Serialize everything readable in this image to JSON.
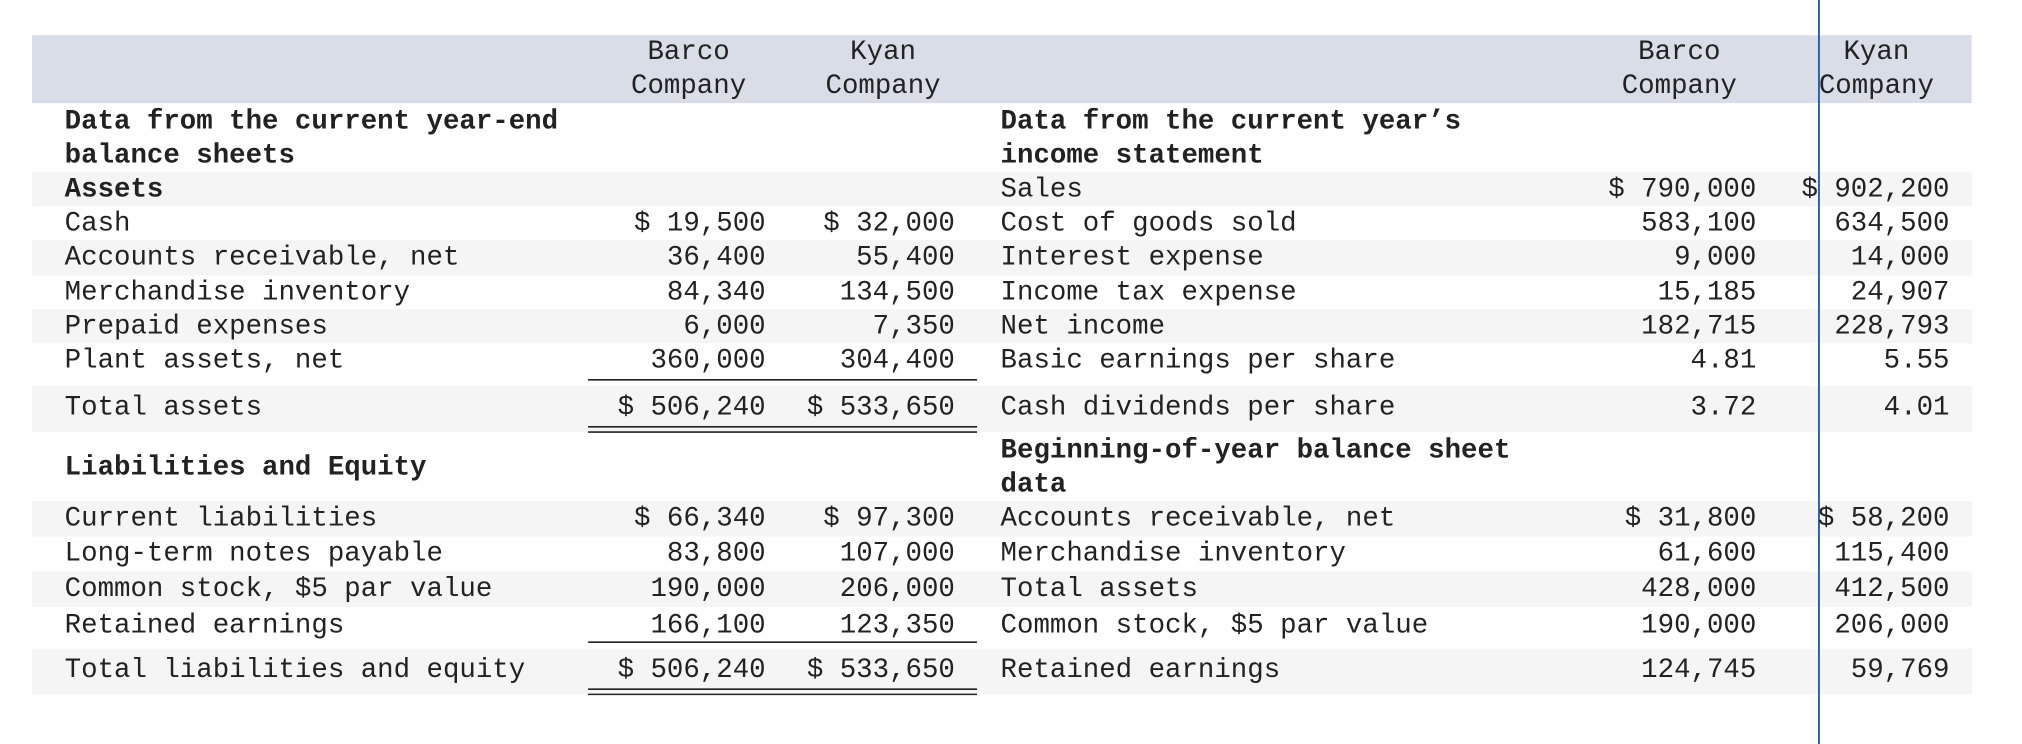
{
  "header": {
    "left_columns": [
      "Barco Company",
      "Kyan Company"
    ],
    "right_columns": [
      "Barco Company",
      "Kyan Company"
    ]
  },
  "left": [
    {
      "label": "Data from the current year-end balance sheets"
    },
    {
      "label": "Assets"
    },
    {
      "label": "Cash",
      "values": [
        "$ 19,500",
        "$ 32,000"
      ]
    },
    {
      "label": "Accounts receivable, net",
      "values": [
        "36,400",
        "55,400"
      ]
    },
    {
      "label": "Merchandise inventory",
      "values": [
        "84,340",
        "134,500"
      ]
    },
    {
      "label": "Prepaid expenses",
      "values": [
        "6,000",
        "7,350"
      ]
    },
    {
      "label": "Plant assets, net",
      "values": [
        "360,000",
        "304,400"
      ]
    },
    {
      "label": "Total assets",
      "values": [
        "$ 506,240",
        "$ 533,650"
      ]
    },
    {
      "label": "Liabilities and Equity"
    },
    {
      "label": "Current liabilities",
      "values": [
        "$ 66,340",
        "$ 97,300"
      ]
    },
    {
      "label": "Long-term notes payable",
      "values": [
        "83,800",
        "107,000"
      ]
    },
    {
      "label": "Common stock, $5 par value",
      "values": [
        "190,000",
        "206,000"
      ]
    },
    {
      "label": "Retained earnings",
      "values": [
        "166,100",
        "123,350"
      ]
    },
    {
      "label": "Total liabilities and equity",
      "values": [
        "$ 506,240",
        "$ 533,650"
      ]
    }
  ],
  "right": [
    {
      "label": "Data from the current year’s income statement"
    },
    {
      "label": "Sales",
      "values": [
        "$ 790,000",
        "$ 902,200"
      ]
    },
    {
      "label": "Cost of goods sold",
      "values": [
        "583,100",
        "634,500"
      ]
    },
    {
      "label": "Interest expense",
      "values": [
        "9,000",
        "14,000"
      ]
    },
    {
      "label": "Income tax expense",
      "values": [
        "15,185",
        "24,907"
      ]
    },
    {
      "label": "Net income",
      "values": [
        "182,715",
        "228,793"
      ]
    },
    {
      "label": "Basic earnings per share",
      "values": [
        "4.81",
        "5.55"
      ]
    },
    {
      "label": "Cash dividends per share",
      "values": [
        "3.72",
        "4.01"
      ]
    },
    {
      "label": "Beginning-of-year balance sheet data"
    },
    {
      "label": "Accounts receivable, net",
      "values": [
        "$ 31,800",
        "$ 58,200"
      ]
    },
    {
      "label": "Merchandise inventory",
      "values": [
        "61,600",
        "115,400"
      ]
    },
    {
      "label": "Total assets",
      "values": [
        "428,000",
        "412,500"
      ]
    },
    {
      "label": "Common stock, $5 par value",
      "values": [
        "190,000",
        "206,000"
      ]
    },
    {
      "label": "Retained earnings",
      "values": [
        "124,745",
        "59,769"
      ]
    }
  ]
}
